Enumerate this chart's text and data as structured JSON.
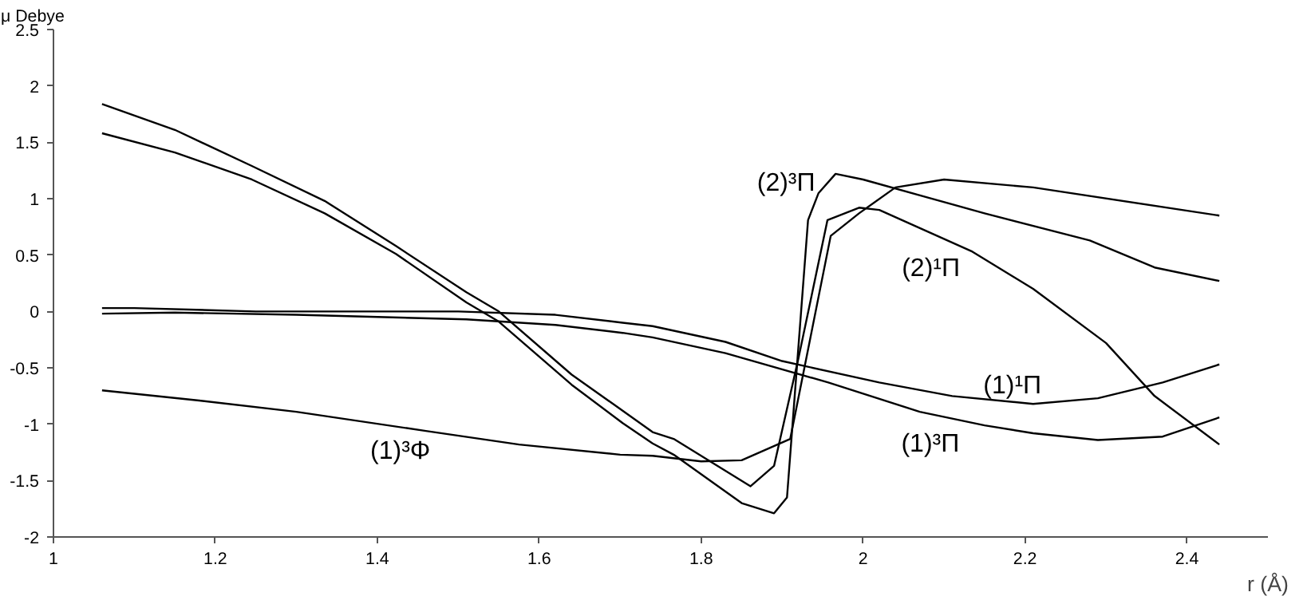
{
  "chart_data": {
    "type": "line",
    "xlabel": "r (Å)",
    "ylabel": "μ Debye",
    "xlim": [
      1,
      2.5
    ],
    "ylim": [
      -2,
      2.5
    ],
    "xticks": [
      1,
      1.2,
      1.4,
      1.6,
      1.8,
      2,
      2.2,
      2.4
    ],
    "yticks": [
      -2,
      -1.5,
      -1,
      -0.5,
      0,
      0.5,
      1,
      1.5,
      2,
      2.5
    ],
    "grid": false,
    "line_style": "solid",
    "series": [
      {
        "name": "(2)¹Π",
        "color": "#000000",
        "x": [
          1.06,
          1.15,
          1.245,
          1.335,
          1.423,
          1.51,
          1.55,
          1.64,
          1.703,
          1.74,
          1.766,
          1.861,
          1.89,
          1.92,
          1.956,
          1.995,
          2.02,
          2.135,
          2.21,
          2.3,
          2.36,
          2.44
        ],
        "values": [
          1.84,
          1.61,
          1.29,
          0.98,
          0.58,
          0.17,
          0,
          -0.56,
          -0.88,
          -1.07,
          -1.13,
          -1.55,
          -1.37,
          -0.42,
          0.81,
          0.92,
          0.9,
          0.53,
          0.2,
          -0.28,
          -0.75,
          -1.18
        ]
      },
      {
        "name": "(2)³Π",
        "color": "#000000",
        "x": [
          1.06,
          1.15,
          1.245,
          1.335,
          1.423,
          1.51,
          1.55,
          1.64,
          1.703,
          1.74,
          1.766,
          1.85,
          1.89,
          1.906,
          1.919,
          1.932,
          1.945,
          1.966,
          2.0,
          2.08,
          2.15,
          2.28,
          2.36,
          2.44
        ],
        "values": [
          1.58,
          1.41,
          1.17,
          0.87,
          0.51,
          0.08,
          -0.09,
          -0.65,
          -0.99,
          -1.17,
          -1.27,
          -1.7,
          -1.79,
          -1.65,
          -0.42,
          0.81,
          1.05,
          1.22,
          1.17,
          1.01,
          0.87,
          0.63,
          0.39,
          0.27
        ]
      },
      {
        "name": "(1)³Φ",
        "color": "#000000",
        "x": [
          1.06,
          1.18,
          1.3,
          1.46,
          1.575,
          1.7,
          1.74,
          1.8,
          1.85,
          1.91,
          1.96,
          1.995,
          2.04,
          2.1,
          2.21,
          2.44
        ],
        "values": [
          -0.7,
          -0.79,
          -0.89,
          -1.06,
          -1.18,
          -1.27,
          -1.28,
          -1.33,
          -1.32,
          -1.13,
          0.67,
          0.87,
          1.1,
          1.17,
          1.1,
          0.85
        ]
      },
      {
        "name": "(1)¹Π",
        "color": "#000000",
        "x": [
          1.06,
          1.1,
          1.25,
          1.5,
          1.62,
          1.703,
          1.74,
          1.83,
          1.9,
          2.02,
          2.11,
          2.21,
          2.29,
          2.37,
          2.44
        ],
        "values": [
          0.03,
          0.03,
          0,
          0,
          -0.03,
          -0.1,
          -0.13,
          -0.27,
          -0.44,
          -0.63,
          -0.75,
          -0.82,
          -0.77,
          -0.63,
          -0.47
        ]
      },
      {
        "name": "(1)³Π",
        "color": "#000000",
        "x": [
          1.06,
          1.15,
          1.3,
          1.51,
          1.62,
          1.703,
          1.74,
          1.83,
          1.957,
          2.07,
          2.15,
          2.21,
          2.29,
          2.37,
          2.44
        ],
        "values": [
          -0.02,
          -0.01,
          -0.03,
          -0.07,
          -0.12,
          -0.19,
          -0.23,
          -0.37,
          -0.63,
          -0.89,
          -1.01,
          -1.08,
          -1.14,
          -1.11,
          -0.94
        ]
      }
    ]
  }
}
